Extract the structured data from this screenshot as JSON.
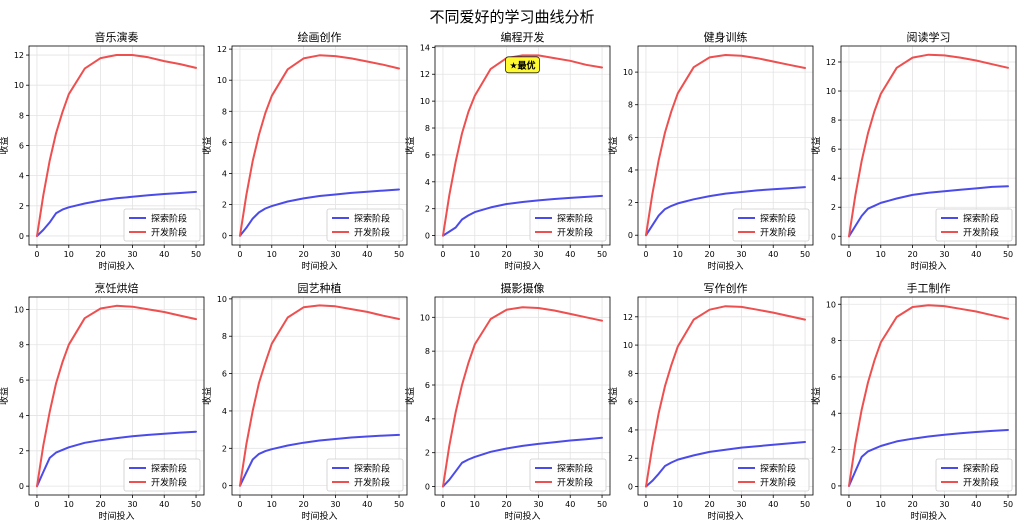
{
  "figure": {
    "title": "不同爱好的学习曲线分析",
    "axis_xlabel": "时间投入",
    "axis_ylabel": "收益",
    "legend_labels": [
      "探索阶段",
      "开发阶段"
    ],
    "colors": {
      "explore": "#4b4bea",
      "exploit": "#ee4f4f",
      "grid": "#e3e3e3",
      "badge_fill": "#fffa30",
      "badge_stroke": "#222222"
    }
  },
  "chart_data": [
    {
      "type": "line",
      "title": "音乐演奏",
      "xlabel": "时间投入",
      "ylabel": "收益",
      "xlim": [
        -2.5,
        52.5
      ],
      "ylim": [
        -0.6,
        12.6
      ],
      "xticks": [
        0,
        10,
        20,
        30,
        40,
        50
      ],
      "yticks": [
        0,
        2,
        4,
        6,
        8,
        10,
        12
      ],
      "grid": true,
      "legend": "lower-right",
      "x": [
        0,
        2,
        4,
        6,
        8,
        10,
        15,
        20,
        25,
        30,
        35,
        40,
        45,
        50
      ],
      "series": [
        {
          "name": "探索阶段",
          "values": [
            0,
            0.4,
            0.9,
            1.5,
            1.75,
            1.9,
            2.15,
            2.35,
            2.5,
            2.6,
            2.7,
            2.78,
            2.85,
            2.92
          ]
        },
        {
          "name": "开发阶段",
          "values": [
            0,
            2.7,
            5.0,
            6.8,
            8.2,
            9.4,
            11.1,
            11.8,
            12.0,
            12.0,
            11.85,
            11.6,
            11.4,
            11.15
          ]
        }
      ]
    },
    {
      "type": "line",
      "title": "绘画创作",
      "xlabel": "时间投入",
      "ylabel": "收益",
      "xlim": [
        -2.5,
        52.5
      ],
      "ylim": [
        -0.6,
        12.2
      ],
      "xticks": [
        0,
        10,
        20,
        30,
        40,
        50
      ],
      "yticks": [
        0,
        2,
        4,
        6,
        8,
        10,
        12
      ],
      "grid": true,
      "legend": "lower-right",
      "x": [
        0,
        2,
        4,
        6,
        8,
        10,
        15,
        20,
        25,
        30,
        35,
        40,
        45,
        50
      ],
      "series": [
        {
          "name": "探索阶段",
          "values": [
            0,
            0.5,
            1.1,
            1.5,
            1.75,
            1.9,
            2.2,
            2.4,
            2.55,
            2.65,
            2.75,
            2.83,
            2.9,
            2.97
          ]
        },
        {
          "name": "开发阶段",
          "values": [
            0,
            2.6,
            4.8,
            6.5,
            7.9,
            9.0,
            10.7,
            11.4,
            11.6,
            11.55,
            11.4,
            11.2,
            11.0,
            10.75
          ]
        }
      ]
    },
    {
      "type": "line",
      "title": "编程开发",
      "xlabel": "时间投入",
      "ylabel": "收益",
      "xlim": [
        -2.5,
        52.5
      ],
      "ylim": [
        -0.7,
        14.1
      ],
      "xticks": [
        0,
        10,
        20,
        30,
        40,
        50
      ],
      "yticks": [
        0,
        2,
        4,
        6,
        8,
        10,
        12,
        14
      ],
      "grid": true,
      "legend": "lower-right",
      "annotation": {
        "text": "★最优",
        "x": 25,
        "y": 12.7
      },
      "x": [
        0,
        2,
        4,
        6,
        8,
        10,
        15,
        20,
        25,
        30,
        35,
        40,
        45,
        50
      ],
      "series": [
        {
          "name": "探索阶段",
          "values": [
            0,
            0.3,
            0.6,
            1.2,
            1.5,
            1.75,
            2.1,
            2.35,
            2.5,
            2.62,
            2.72,
            2.8,
            2.88,
            2.95
          ]
        },
        {
          "name": "开发阶段",
          "values": [
            0,
            3.0,
            5.5,
            7.6,
            9.2,
            10.4,
            12.4,
            13.2,
            13.4,
            13.4,
            13.2,
            13.0,
            12.7,
            12.5
          ]
        }
      ]
    },
    {
      "type": "line",
      "title": "健身训练",
      "xlabel": "时间投入",
      "ylabel": "收益",
      "xlim": [
        -2.5,
        52.5
      ],
      "ylim": [
        -0.6,
        11.6
      ],
      "xticks": [
        0,
        10,
        20,
        30,
        40,
        50
      ],
      "yticks": [
        0,
        2,
        4,
        6,
        8,
        10
      ],
      "grid": true,
      "legend": "lower-right",
      "x": [
        0,
        2,
        4,
        6,
        8,
        10,
        15,
        20,
        25,
        30,
        35,
        40,
        45,
        50
      ],
      "series": [
        {
          "name": "探索阶段",
          "values": [
            0,
            0.6,
            1.2,
            1.6,
            1.8,
            1.95,
            2.2,
            2.4,
            2.55,
            2.65,
            2.75,
            2.82,
            2.88,
            2.95
          ]
        },
        {
          "name": "开发阶段",
          "values": [
            0,
            2.5,
            4.6,
            6.3,
            7.6,
            8.7,
            10.3,
            10.9,
            11.05,
            11.0,
            10.85,
            10.65,
            10.45,
            10.25
          ]
        }
      ]
    },
    {
      "type": "line",
      "title": "阅读学习",
      "xlabel": "时间投入",
      "ylabel": "收益",
      "xlim": [
        -2.5,
        52.5
      ],
      "ylim": [
        -0.6,
        13.1
      ],
      "xticks": [
        0,
        10,
        20,
        30,
        40,
        50
      ],
      "yticks": [
        0,
        2,
        4,
        6,
        8,
        10,
        12
      ],
      "grid": true,
      "legend": "lower-right",
      "x": [
        0,
        2,
        4,
        6,
        8,
        10,
        15,
        20,
        25,
        30,
        35,
        40,
        45,
        50
      ],
      "series": [
        {
          "name": "探索阶段",
          "values": [
            0,
            0.7,
            1.4,
            1.9,
            2.1,
            2.3,
            2.6,
            2.85,
            3.0,
            3.1,
            3.2,
            3.3,
            3.4,
            3.45
          ]
        },
        {
          "name": "开发阶段",
          "values": [
            0,
            2.8,
            5.2,
            7.1,
            8.6,
            9.8,
            11.6,
            12.3,
            12.5,
            12.45,
            12.3,
            12.1,
            11.85,
            11.6
          ]
        }
      ]
    },
    {
      "type": "line",
      "title": "烹饪烘焙",
      "xlabel": "时间投入",
      "ylabel": "收益",
      "xlim": [
        -2.5,
        52.5
      ],
      "ylim": [
        -0.5,
        10.7
      ],
      "xticks": [
        0,
        10,
        20,
        30,
        40,
        50
      ],
      "yticks": [
        0,
        2,
        4,
        6,
        8,
        10
      ],
      "grid": true,
      "legend": "lower-right",
      "x": [
        0,
        2,
        4,
        6,
        8,
        10,
        15,
        20,
        25,
        30,
        35,
        40,
        45,
        50
      ],
      "series": [
        {
          "name": "探索阶段",
          "values": [
            0,
            0.8,
            1.6,
            1.9,
            2.05,
            2.2,
            2.45,
            2.6,
            2.72,
            2.82,
            2.9,
            2.97,
            3.03,
            3.08
          ]
        },
        {
          "name": "开发阶段",
          "values": [
            0,
            2.3,
            4.2,
            5.8,
            7.0,
            8.0,
            9.5,
            10.05,
            10.2,
            10.15,
            10.0,
            9.85,
            9.65,
            9.45
          ]
        }
      ]
    },
    {
      "type": "line",
      "title": "园艺种植",
      "xlabel": "时间投入",
      "ylabel": "收益",
      "xlim": [
        -2.5,
        52.5
      ],
      "ylim": [
        -0.5,
        10.1
      ],
      "xticks": [
        0,
        10,
        20,
        30,
        40,
        50
      ],
      "yticks": [
        0,
        2,
        4,
        6,
        8,
        10
      ],
      "grid": true,
      "legend": "lower-right",
      "x": [
        0,
        2,
        4,
        6,
        8,
        10,
        15,
        20,
        25,
        30,
        35,
        40,
        45,
        50
      ],
      "series": [
        {
          "name": "探索阶段",
          "values": [
            0,
            0.7,
            1.4,
            1.7,
            1.85,
            1.95,
            2.15,
            2.3,
            2.42,
            2.5,
            2.58,
            2.63,
            2.68,
            2.72
          ]
        },
        {
          "name": "开发阶段",
          "values": [
            0,
            2.2,
            4.0,
            5.5,
            6.6,
            7.6,
            9.0,
            9.55,
            9.65,
            9.6,
            9.45,
            9.3,
            9.1,
            8.92
          ]
        }
      ]
    },
    {
      "type": "line",
      "title": "摄影摄像",
      "xlabel": "时间投入",
      "ylabel": "收益",
      "xlim": [
        -2.5,
        52.5
      ],
      "ylim": [
        -0.5,
        11.2
      ],
      "xticks": [
        0,
        10,
        20,
        30,
        40,
        50
      ],
      "yticks": [
        0,
        2,
        4,
        6,
        8,
        10
      ],
      "grid": true,
      "legend": "lower-right",
      "x": [
        0,
        2,
        4,
        6,
        8,
        10,
        15,
        20,
        25,
        30,
        35,
        40,
        45,
        50
      ],
      "series": [
        {
          "name": "探索阶段",
          "values": [
            0,
            0.4,
            0.9,
            1.4,
            1.6,
            1.75,
            2.05,
            2.25,
            2.4,
            2.52,
            2.62,
            2.72,
            2.8,
            2.88
          ]
        },
        {
          "name": "开发阶段",
          "values": [
            0,
            2.4,
            4.4,
            6.0,
            7.3,
            8.4,
            9.9,
            10.45,
            10.6,
            10.55,
            10.4,
            10.2,
            10.0,
            9.8
          ]
        }
      ]
    },
    {
      "type": "line",
      "title": "写作创作",
      "xlabel": "时间投入",
      "ylabel": "收益",
      "xlim": [
        -2.5,
        52.5
      ],
      "ylim": [
        -0.6,
        13.4
      ],
      "xticks": [
        0,
        10,
        20,
        30,
        40,
        50
      ],
      "yticks": [
        0,
        2,
        4,
        6,
        8,
        10,
        12
      ],
      "grid": true,
      "legend": "lower-right",
      "x": [
        0,
        2,
        4,
        6,
        8,
        10,
        15,
        20,
        25,
        30,
        35,
        40,
        45,
        50
      ],
      "series": [
        {
          "name": "探索阶段",
          "values": [
            0,
            0.4,
            0.9,
            1.45,
            1.7,
            1.9,
            2.2,
            2.45,
            2.6,
            2.75,
            2.85,
            2.95,
            3.05,
            3.15
          ]
        },
        {
          "name": "开发阶段",
          "values": [
            0,
            2.8,
            5.2,
            7.1,
            8.6,
            9.9,
            11.8,
            12.5,
            12.75,
            12.7,
            12.5,
            12.3,
            12.05,
            11.8
          ]
        }
      ]
    },
    {
      "type": "line",
      "title": "手工制作",
      "xlabel": "时间投入",
      "ylabel": "收益",
      "xlim": [
        -2.5,
        52.5
      ],
      "ylim": [
        -0.5,
        10.4
      ],
      "xticks": [
        0,
        10,
        20,
        30,
        40,
        50
      ],
      "yticks": [
        0,
        2,
        4,
        6,
        8,
        10
      ],
      "grid": true,
      "legend": "lower-right",
      "x": [
        0,
        2,
        4,
        6,
        8,
        10,
        15,
        20,
        25,
        30,
        35,
        40,
        45,
        50
      ],
      "series": [
        {
          "name": "探索阶段",
          "values": [
            0,
            0.8,
            1.6,
            1.9,
            2.05,
            2.2,
            2.45,
            2.6,
            2.72,
            2.82,
            2.9,
            2.97,
            3.03,
            3.08
          ]
        },
        {
          "name": "开发阶段",
          "values": [
            0,
            2.3,
            4.2,
            5.7,
            6.9,
            7.9,
            9.3,
            9.85,
            9.95,
            9.9,
            9.75,
            9.6,
            9.4,
            9.2
          ]
        }
      ]
    }
  ]
}
